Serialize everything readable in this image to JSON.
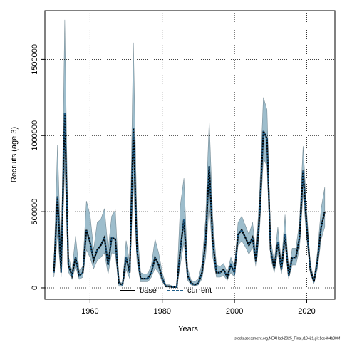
{
  "chart_data": {
    "type": "line",
    "xlabel": "Years",
    "ylabel": "Recruits (age 3)",
    "footnote": "stockassessment.org,NEAHad-2025_Final,r19421,git:1cc464b806f",
    "x": [
      1950,
      1951,
      1952,
      1953,
      1954,
      1955,
      1956,
      1957,
      1958,
      1959,
      1960,
      1961,
      1962,
      1963,
      1964,
      1965,
      1966,
      1967,
      1968,
      1969,
      1970,
      1971,
      1972,
      1973,
      1974,
      1975,
      1976,
      1977,
      1978,
      1979,
      1980,
      1981,
      1982,
      1983,
      1984,
      1985,
      1986,
      1987,
      1988,
      1989,
      1990,
      1991,
      1992,
      1993,
      1994,
      1995,
      1996,
      1997,
      1998,
      1999,
      2000,
      2001,
      2002,
      2003,
      2004,
      2005,
      2006,
      2007,
      2008,
      2009,
      2010,
      2011,
      2012,
      2013,
      2014,
      2015,
      2016,
      2017,
      2018,
      2019,
      2020,
      2021,
      2022,
      2023,
      2024,
      2025
    ],
    "series": [
      {
        "name": "base",
        "color": "#000000",
        "dash": false,
        "values": [
          100000,
          600000,
          100000,
          1150000,
          150000,
          80000,
          200000,
          80000,
          100000,
          380000,
          300000,
          180000,
          250000,
          280000,
          330000,
          150000,
          330000,
          320000,
          30000,
          20000,
          200000,
          100000,
          1050000,
          250000,
          60000,
          60000,
          60000,
          100000,
          200000,
          150000,
          60000,
          10000,
          10000,
          5000,
          5000,
          250000,
          450000,
          80000,
          30000,
          20000,
          30000,
          100000,
          300000,
          800000,
          300000,
          100000,
          100000,
          120000,
          70000,
          150000,
          100000,
          350000,
          380000,
          330000,
          280000,
          330000,
          170000,
          500000,
          1030000,
          980000,
          250000,
          130000,
          300000,
          120000,
          350000,
          80000,
          200000,
          200000,
          330000,
          770000,
          400000,
          120000,
          40000,
          180000,
          400000,
          500000
        ]
      },
      {
        "name": "current",
        "color": "#1f5f8b",
        "dash": true,
        "values": [
          100000,
          600000,
          100000,
          1150000,
          150000,
          80000,
          200000,
          80000,
          100000,
          380000,
          300000,
          180000,
          250000,
          280000,
          330000,
          150000,
          330000,
          320000,
          30000,
          20000,
          200000,
          100000,
          1050000,
          250000,
          60000,
          60000,
          60000,
          100000,
          200000,
          150000,
          60000,
          10000,
          10000,
          5000,
          5000,
          250000,
          450000,
          80000,
          30000,
          20000,
          30000,
          100000,
          300000,
          800000,
          300000,
          100000,
          100000,
          120000,
          70000,
          150000,
          100000,
          350000,
          380000,
          330000,
          280000,
          330000,
          170000,
          500000,
          1030000,
          980000,
          250000,
          130000,
          300000,
          120000,
          350000,
          80000,
          200000,
          200000,
          330000,
          770000,
          400000,
          120000,
          40000,
          180000,
          400000,
          500000
        ]
      }
    ],
    "band": {
      "color": "#9dbdcc",
      "upper": [
        140000,
        940000,
        140000,
        1760000,
        210000,
        112000,
        340000,
        112000,
        140000,
        570000,
        480000,
        250000,
        430000,
        450000,
        520000,
        250000,
        470000,
        510000,
        42000,
        30000,
        310000,
        160000,
        1610000,
        400000,
        100000,
        90000,
        90000,
        150000,
        320000,
        230000,
        100000,
        20000,
        20000,
        10000,
        10000,
        540000,
        720000,
        130000,
        50000,
        40000,
        60000,
        160000,
        450000,
        1100000,
        450000,
        150000,
        140000,
        160000,
        100000,
        200000,
        140000,
        430000,
        470000,
        410000,
        350000,
        430000,
        220000,
        650000,
        1250000,
        1170000,
        320000,
        170000,
        400000,
        160000,
        480000,
        110000,
        260000,
        260000,
        430000,
        930000,
        500000,
        160000,
        60000,
        240000,
        520000,
        660000
      ],
      "lower": [
        70000,
        350000,
        70000,
        800000,
        105000,
        56000,
        140000,
        56000,
        70000,
        250000,
        200000,
        126000,
        180000,
        200000,
        230000,
        90000,
        230000,
        220000,
        10000,
        10000,
        120000,
        60000,
        700000,
        170000,
        40000,
        40000,
        40000,
        70000,
        130000,
        100000,
        40000,
        5000,
        5000,
        2000,
        2000,
        150000,
        300000,
        50000,
        20000,
        10000,
        20000,
        60000,
        200000,
        550000,
        200000,
        70000,
        70000,
        80000,
        50000,
        100000,
        70000,
        280000,
        310000,
        270000,
        220000,
        270000,
        130000,
        400000,
        850000,
        800000,
        200000,
        100000,
        230000,
        90000,
        270000,
        60000,
        150000,
        150000,
        260000,
        620000,
        320000,
        90000,
        30000,
        130000,
        320000,
        400000
      ]
    },
    "xlim": [
      1947.5,
      2027.8
    ],
    "ylim": [
      -75000,
      1820000
    ],
    "xticks": [
      1960,
      1980,
      2000,
      2020
    ],
    "yticks": [
      0,
      500000,
      1000000,
      1500000
    ],
    "grid": true,
    "legend": "bottom"
  }
}
